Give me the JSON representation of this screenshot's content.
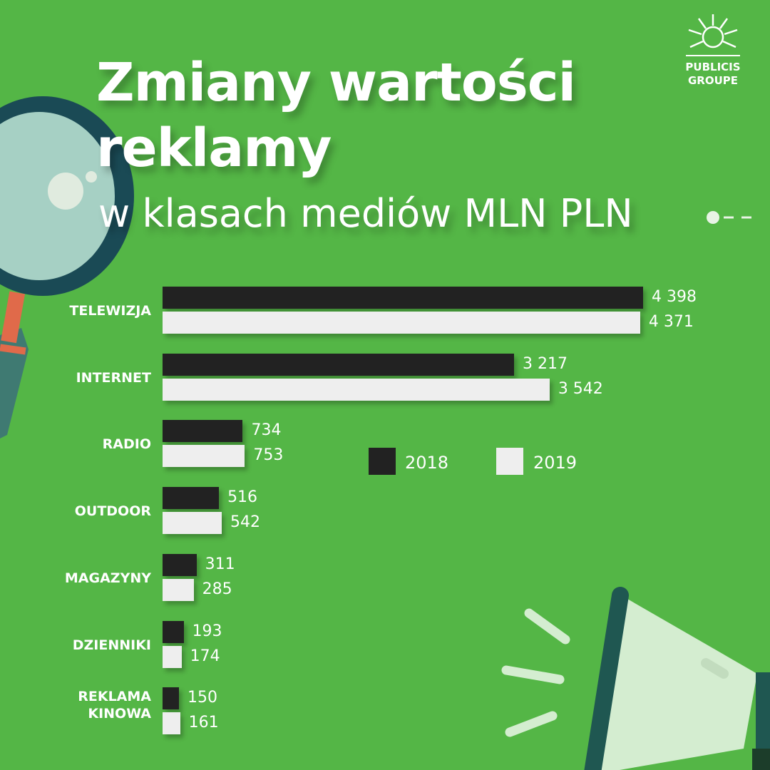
{
  "title": "Zmiany wartości reklamy",
  "subtitle": "w klasach mediów MLN PLN",
  "logo": {
    "line1": "PUBLICIS",
    "line2": "GROUPE"
  },
  "colors": {
    "background": "#54b646",
    "series_2018": "#222222",
    "series_2019": "#eeeeee",
    "dark_teal": "#1f5751",
    "light_green": "#d4edd0"
  },
  "chart_data": {
    "type": "bar",
    "orientation": "horizontal",
    "categories": [
      "TELEWIZJA",
      "INTERNET",
      "RADIO",
      "OUTDOOR",
      "MAGAZYNY",
      "DZIENNIKI",
      "REKLAMA KINOWA"
    ],
    "series": [
      {
        "name": "2018",
        "values": [
          4398,
          3217,
          734,
          516,
          311,
          193,
          150
        ],
        "labels": [
          "4 398",
          "3 217",
          "734",
          "516",
          "311",
          "193",
          "150"
        ]
      },
      {
        "name": "2019",
        "values": [
          4371,
          3542,
          753,
          542,
          285,
          174,
          161
        ],
        "labels": [
          "4 371",
          "3 542",
          "753",
          "542",
          "285",
          "174",
          "161"
        ]
      }
    ],
    "xlim": [
      0,
      4398
    ],
    "grid": false,
    "legend": "center-right"
  }
}
